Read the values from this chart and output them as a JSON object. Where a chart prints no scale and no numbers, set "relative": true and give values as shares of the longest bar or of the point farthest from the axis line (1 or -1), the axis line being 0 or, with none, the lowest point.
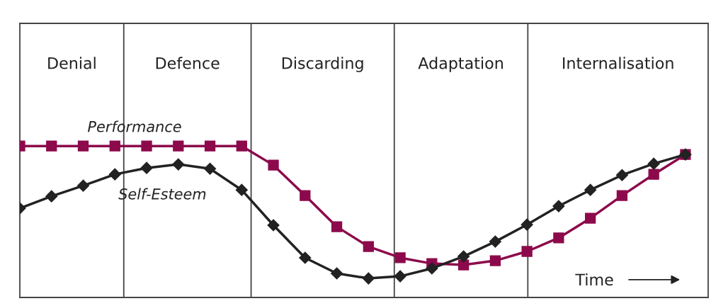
{
  "chart_data": {
    "type": "line",
    "relative": true,
    "line_style": "solid",
    "categories": [
      null,
      null,
      null,
      null,
      null,
      null,
      null,
      null,
      null,
      null,
      null,
      null,
      null,
      null,
      null,
      null,
      null,
      null,
      null,
      null,
      null,
      null
    ],
    "series": [
      {
        "name": "Performance",
        "color": "#8c0a4b",
        "marker": "square",
        "values": [
          1.0,
          1.0,
          1.0,
          1.0,
          1.0,
          1.0,
          1.0,
          1.0,
          0.874,
          0.673,
          0.467,
          0.336,
          0.262,
          0.224,
          0.215,
          0.243,
          0.304,
          0.393,
          0.523,
          0.673,
          0.813,
          0.944
        ]
      },
      {
        "name": "Self-Esteem",
        "color": "#222222",
        "marker": "diamond",
        "values": [
          0.589,
          0.668,
          0.738,
          0.813,
          0.855,
          0.879,
          0.85,
          0.71,
          0.477,
          0.262,
          0.159,
          0.126,
          0.14,
          0.192,
          0.271,
          0.369,
          0.481,
          0.603,
          0.71,
          0.808,
          0.883,
          0.944
        ]
      }
    ],
    "annotations": [
      "Denial",
      "Defence",
      "Discarding",
      "Adaptation",
      "Internalisation",
      "Time"
    ]
  }
}
